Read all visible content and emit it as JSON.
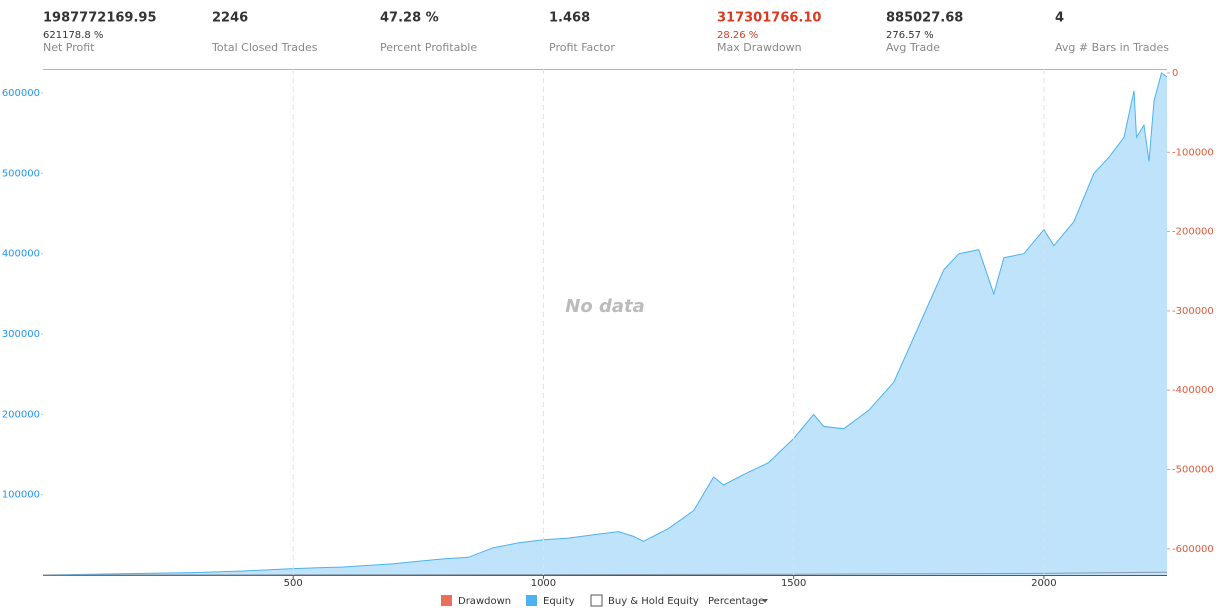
{
  "stats": [
    {
      "value": "1987772169.95",
      "sub": "621178.8 %",
      "label": "Net Profit"
    },
    {
      "value": "2246",
      "label": "Total Closed Trades"
    },
    {
      "value": "47.28 %",
      "label": "Percent Profitable"
    },
    {
      "value": "1.468",
      "label": "Profit Factor"
    },
    {
      "value": "317301766.10",
      "sub": "28.26 %",
      "label": "Max Drawdown",
      "color": "#d9391f"
    },
    {
      "value": "885027.68",
      "sub": "276.57 %",
      "label": "Avg Trade"
    },
    {
      "value": "4",
      "label": "Avg # Bars in Trades"
    }
  ],
  "chart_data": {
    "type": "area",
    "annotation": "No data",
    "xlim": [
      0,
      2246
    ],
    "xticks": [
      500,
      1000,
      1500,
      2000
    ],
    "ylim": [
      0,
      630000
    ],
    "yticks": [
      100000,
      200000,
      300000,
      400000,
      500000,
      600000
    ],
    "y2lim": [
      -633000,
      5000
    ],
    "y2ticks": [
      0,
      -100000,
      -200000,
      -300000,
      -400000,
      -500000,
      -600000
    ],
    "grid": true,
    "series": [
      {
        "name": "Drawdown",
        "color": "#e8705a",
        "axis": "y2",
        "x": [],
        "values": []
      },
      {
        "name": "Equity",
        "color": "#4db1f2",
        "fill": "#bfe3fb",
        "x": [
          0,
          100,
          200,
          300,
          400,
          500,
          550,
          600,
          700,
          750,
          800,
          850,
          900,
          950,
          1000,
          1050,
          1100,
          1150,
          1180,
          1200,
          1250,
          1300,
          1340,
          1360,
          1400,
          1450,
          1500,
          1540,
          1560,
          1600,
          1650,
          1700,
          1750,
          1800,
          1830,
          1870,
          1900,
          1920,
          1960,
          2000,
          2020,
          2060,
          2100,
          2130,
          2160,
          2180,
          2185,
          2200,
          2210,
          2220,
          2235,
          2246
        ],
        "values": [
          0,
          1000,
          2000,
          3000,
          5000,
          8000,
          9000,
          10000,
          14000,
          17000,
          20000,
          22000,
          34000,
          40000,
          44000,
          46000,
          50000,
          54000,
          48000,
          42000,
          58000,
          80000,
          122000,
          112000,
          125000,
          140000,
          170000,
          200000,
          185000,
          182000,
          205000,
          240000,
          310000,
          380000,
          400000,
          405000,
          350000,
          395000,
          400000,
          430000,
          410000,
          440000,
          500000,
          520000,
          545000,
          603000,
          545000,
          560000,
          515000,
          590000,
          625000,
          620000
        ]
      },
      {
        "name": "Buy & Hold Equity",
        "color": "#8a9aa8",
        "legend_color": "#ffffff",
        "x": [
          0,
          500,
          1000,
          1500,
          2000,
          2246
        ],
        "values": [
          0,
          200,
          500,
          1000,
          2000,
          3500
        ]
      }
    ],
    "scale_menu": "Percentage"
  }
}
